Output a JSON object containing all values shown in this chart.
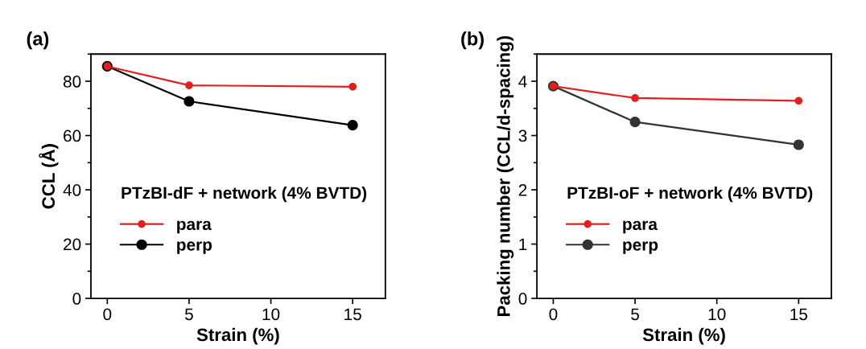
{
  "chart_data": [
    {
      "type": "line",
      "annotations": [
        "(a)"
      ],
      "xlabel": "Strain (%)",
      "ylabel": "CCL (Å)",
      "legend_title": "PTzBI-dF + network (4% BVTD)",
      "x": [
        0,
        5,
        15
      ],
      "series": [
        {
          "name": "para",
          "color": "#e0201c",
          "values": [
            85.5,
            78.5,
            78.0
          ]
        },
        {
          "name": "perp",
          "color": "#000000",
          "values": [
            85.5,
            72.6,
            63.8
          ]
        }
      ],
      "xlim": [
        -1,
        17
      ],
      "xticks": [
        0,
        5,
        10,
        15
      ],
      "ylim": [
        0,
        90
      ],
      "yticks": [
        0,
        20,
        40,
        60,
        80
      ],
      "marker": "circle",
      "line_style": "solid",
      "legend": "bottom left",
      "grid": false
    },
    {
      "type": "line",
      "annotations": [
        "(b)"
      ],
      "xlabel": "Strain (%)",
      "ylabel": "Packing number (CCL/d-spacing)",
      "legend_title": "PTzBI-oF + network (4% BVTD)",
      "x": [
        0,
        5,
        15
      ],
      "series": [
        {
          "name": "para",
          "color": "#e0201c",
          "values": [
            3.91,
            3.69,
            3.64
          ]
        },
        {
          "name": "perp",
          "color": "#333333",
          "values": [
            3.91,
            3.25,
            2.83
          ]
        }
      ],
      "xlim": [
        -1,
        17
      ],
      "xticks": [
        0,
        5,
        10,
        15
      ],
      "ylim": [
        0,
        4.5
      ],
      "yticks": [
        0,
        1,
        2,
        3,
        4
      ],
      "marker": "circle",
      "line_style": "solid",
      "legend": "bottom left",
      "grid": false
    }
  ]
}
